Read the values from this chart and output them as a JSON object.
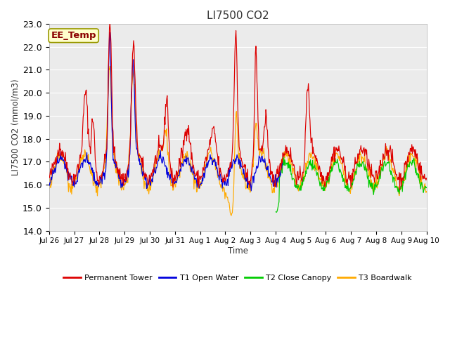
{
  "title": "LI7500 CO2",
  "ylabel": "LI7500 CO2 (mmol/m3)",
  "xlabel": "Time",
  "ylim": [
    14.0,
    23.0
  ],
  "yticks": [
    14.0,
    15.0,
    16.0,
    17.0,
    18.0,
    19.0,
    20.0,
    21.0,
    22.0,
    23.0
  ],
  "x_tick_labels": [
    "Jul 26",
    "Jul 27",
    "Jul 28",
    "Jul 29",
    "Jul 30",
    "Jul 31",
    "Aug 1",
    "Aug 2",
    "Aug 3",
    "Aug 4",
    "Aug 5",
    "Aug 6",
    "Aug 7",
    "Aug 8",
    "Aug 9",
    "Aug 10"
  ],
  "colors": {
    "permanent_tower": "#dd0000",
    "t1_open_water": "#0000dd",
    "t2_close_canopy": "#00cc00",
    "t3_boardwalk": "#ffaa00"
  },
  "legend_labels": [
    "Permanent Tower",
    "T1 Open Water",
    "T2 Close Canopy",
    "T3 Boardwalk"
  ],
  "annotation_text": "EE_Temp",
  "annotation_color": "#8b0000",
  "annotation_bg": "#ffffcc",
  "fig_facecolor": "#ffffff",
  "ax_facecolor": "#ebebeb",
  "grid_color": "#ffffff",
  "n_days": 15,
  "n_per_day": 48
}
